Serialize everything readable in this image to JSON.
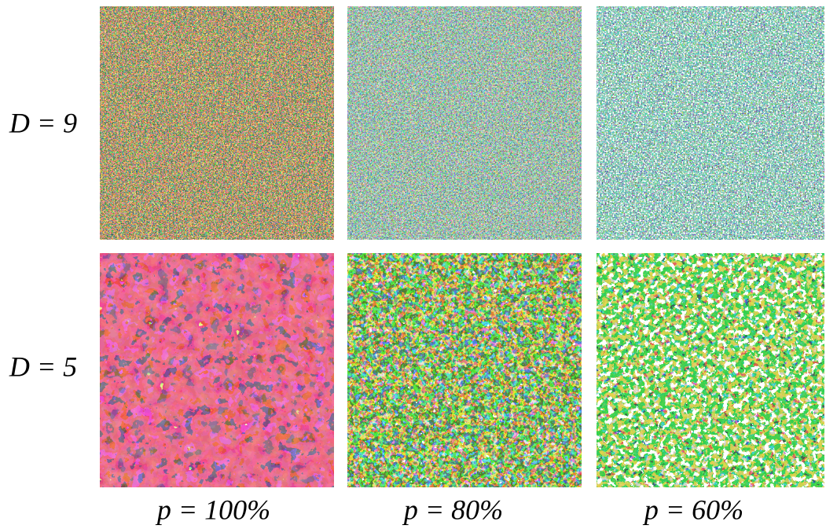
{
  "rows": [
    {
      "label": "D = 9"
    },
    {
      "label": "D = 5"
    }
  ],
  "columns": [
    {
      "label": "p = 100%"
    },
    {
      "label": "p = 80%"
    },
    {
      "label": "p = 60%"
    }
  ]
}
